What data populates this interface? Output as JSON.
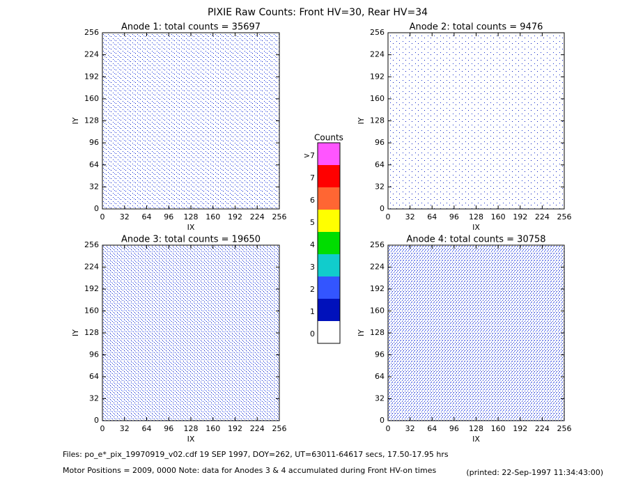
{
  "title": "PIXIE Raw Counts:  Front HV=30, Rear HV=34",
  "colorbar": {
    "title": "Counts",
    "levels": [
      ">7",
      "7",
      "6",
      "5",
      "4",
      "3",
      "2",
      "1",
      "0"
    ],
    "colors": [
      "#ff55ff",
      "#ff0000",
      "#ff6633",
      "#ffff00",
      "#00dd00",
      "#11cccc",
      "#3355ff",
      "#0011bb",
      "#ffffff"
    ]
  },
  "footer": [
    "Files: po_e*_pix_19970919_v02.cdf     19 SEP 1997, DOY=262, UT=63011-64617 secs, 17.50-17.95 hrs",
    "Motor Positions = 2009, 0000   Note: data for Anodes 3 & 4 accumulated during Front HV-on times"
  ],
  "printed": "(printed: 22-Sep-1997 11:34:43:00)",
  "chart_data": [
    {
      "type": "heatmap",
      "title": "Anode 1: total counts = 35697",
      "x_label": "IX",
      "y_label": "IY",
      "xlim": [
        0,
        256
      ],
      "ylim": [
        0,
        256
      ],
      "xticks": [
        0,
        32,
        64,
        96,
        128,
        160,
        192,
        224,
        256
      ],
      "yticks": [
        0,
        32,
        64,
        96,
        128,
        160,
        192,
        224,
        256
      ]
    },
    {
      "type": "heatmap",
      "title": "Anode 2: total counts = 9476",
      "x_label": "IX",
      "y_label": "IY",
      "xlim": [
        0,
        256
      ],
      "ylim": [
        0,
        256
      ],
      "xticks": [
        0,
        32,
        64,
        96,
        128,
        160,
        192,
        224,
        256
      ],
      "yticks": [
        0,
        32,
        64,
        96,
        128,
        160,
        192,
        224,
        256
      ]
    },
    {
      "type": "heatmap",
      "title": "Anode 3: total counts = 19650",
      "x_label": "IX",
      "y_label": "IY",
      "xlim": [
        0,
        256
      ],
      "ylim": [
        0,
        256
      ],
      "xticks": [
        0,
        32,
        64,
        96,
        128,
        160,
        192,
        224,
        256
      ],
      "yticks": [
        0,
        32,
        64,
        96,
        128,
        160,
        192,
        224,
        256
      ]
    },
    {
      "type": "heatmap",
      "title": "Anode 4: total counts = 30758",
      "x_label": "IX",
      "y_label": "IY",
      "xlim": [
        0,
        256
      ],
      "ylim": [
        0,
        256
      ],
      "xticks": [
        0,
        32,
        64,
        96,
        128,
        160,
        192,
        224,
        256
      ],
      "yticks": [
        0,
        32,
        64,
        96,
        128,
        160,
        192,
        224,
        256
      ]
    }
  ]
}
